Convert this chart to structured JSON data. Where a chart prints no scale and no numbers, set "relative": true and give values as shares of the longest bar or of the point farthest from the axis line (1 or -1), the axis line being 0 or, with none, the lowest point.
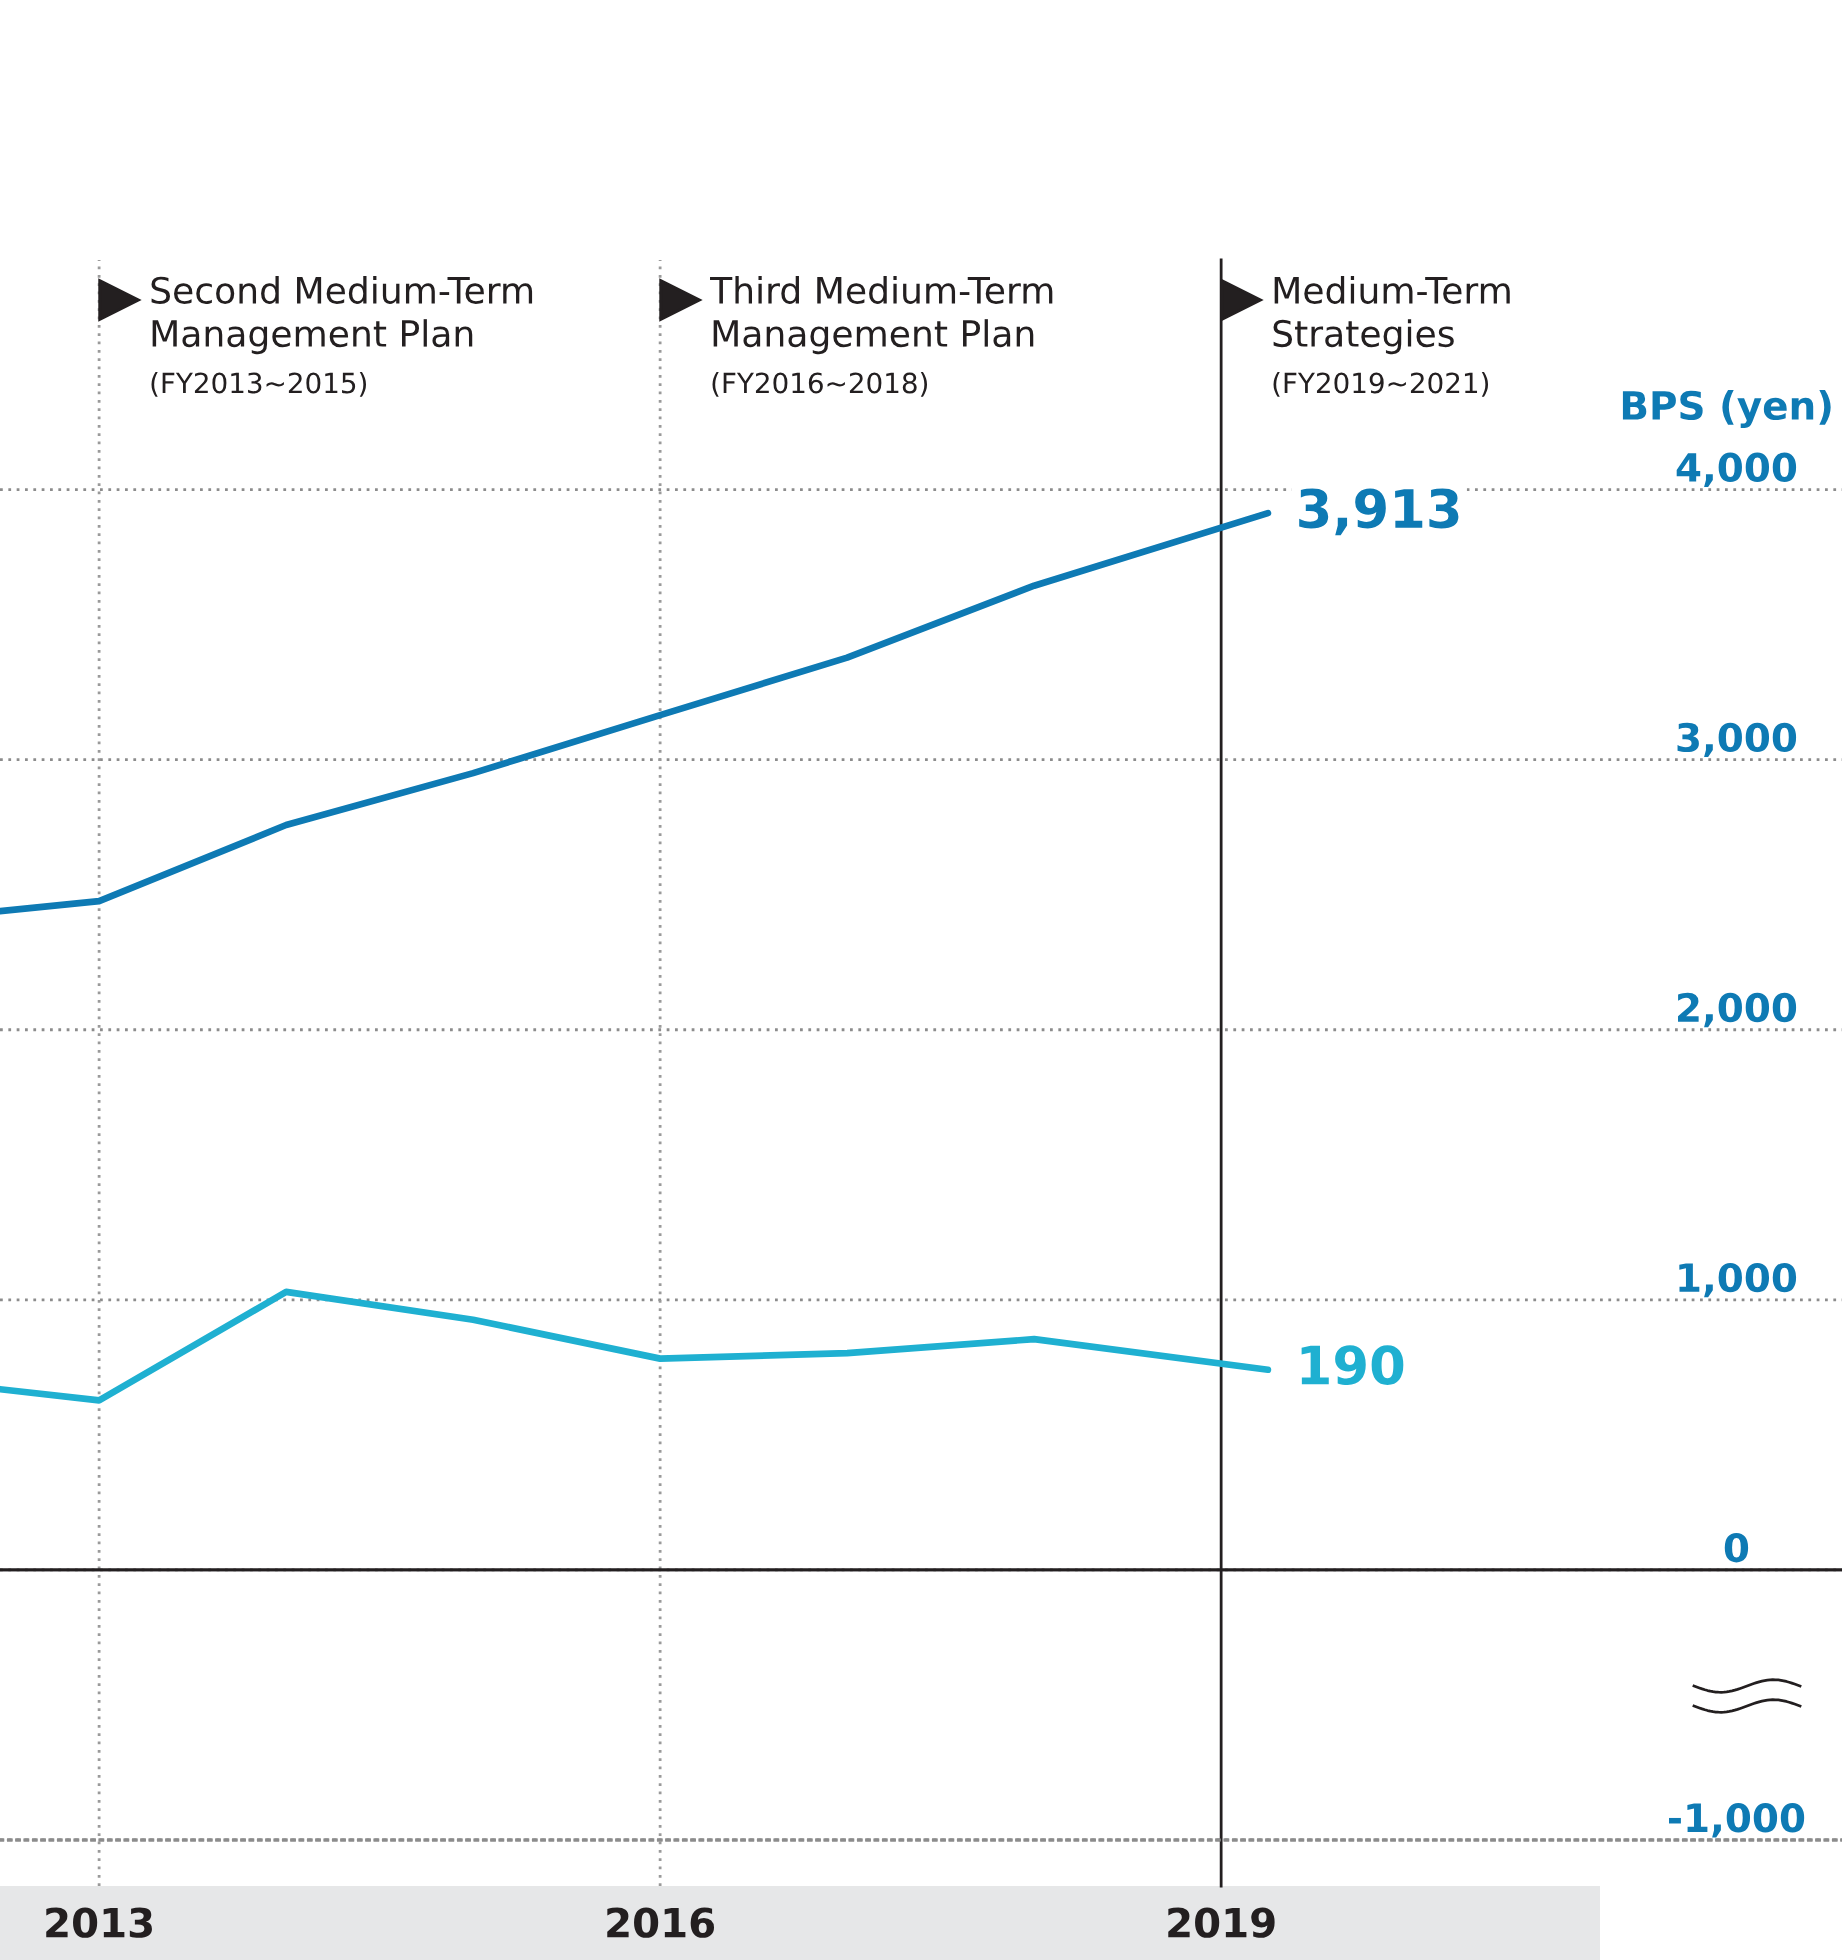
{
  "chart_data": [
    {
      "type": "line",
      "x": [
        2012.47,
        2013,
        2014,
        2015,
        2016,
        2017,
        2018,
        2019.25
      ],
      "series": [
        {
          "color": "#0e7ab4",
          "values": [
            2439,
            2476,
            2758,
            2950,
            3165,
            3378,
            3644,
            3913
          ],
          "value_labels": [
            null,
            null,
            null,
            null,
            null,
            null,
            null,
            "3,913"
          ]
        }
      ],
      "ylabel": "BPS (yen)",
      "xlim": [
        2012.47,
        2022.32
      ],
      "xticks": [
        2013,
        2016,
        2019
      ],
      "ylim": [
        -1000,
        4850
      ],
      "yticks": [
        {
          "value": -1000,
          "label": "-1,000"
        },
        {
          "value": 0,
          "label": "0"
        },
        {
          "value": 1000,
          "label": "1,000"
        },
        {
          "value": 2000,
          "label": "2,000"
        },
        {
          "value": 3000,
          "label": "3,000"
        },
        {
          "value": 4000,
          "label": "4,000"
        }
      ],
      "grid": "y",
      "line_style": "solid",
      "ref_lines": [
        {
          "axis": "x",
          "value": 2013,
          "label": "Second Medium-Term\nManagement Plan",
          "color": "#9a9a9a",
          "line_style": "dotted"
        },
        {
          "axis": "x",
          "value": 2016,
          "label": "Third Medium-Term\nManagement Plan",
          "color": "#9a9a9a",
          "line_style": "dotted"
        },
        {
          "axis": "x",
          "value": 2019,
          "label": "Medium-Term\nStrategies",
          "color": "#231f20",
          "line_style": "solid"
        }
      ],
      "annotations": [
        "(FY2013~2015)",
        "(FY2016~2018)",
        "(FY2019~2021)"
      ]
    },
    {
      "type": "line",
      "relative": true,
      "x": [
        2012.47,
        2013,
        2014,
        2015,
        2016,
        2017,
        2018,
        2019.25
      ],
      "xlim": [
        2012.47,
        2022.32
      ],
      "xticks": [
        2013,
        2016,
        2019
      ],
      "tick_labels": false,
      "line_style": "solid",
      "series": [
        {
          "color": "#1fb0d1",
          "values": [
            0.65,
            0.61,
            1,
            0.9,
            0.76,
            0.78,
            0.83,
            0.72
          ]
        }
      ],
      "annotations": [
        {
          "text": "190",
          "x": 2019.25,
          "y": 0.72
        }
      ]
    }
  ]
}
